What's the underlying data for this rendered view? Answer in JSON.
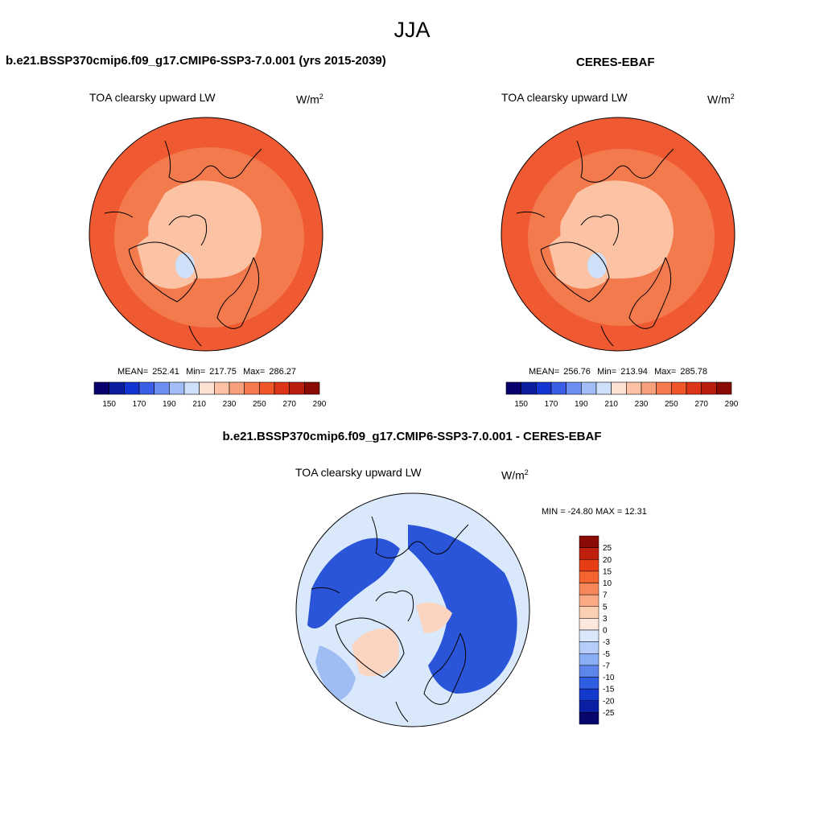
{
  "season": "JJA",
  "panels": [
    {
      "title": "b.e21.BSSP370cmip6.f09_g17.CMIP6-SSP3-7.0.001 (yrs 2015-2039)",
      "variable": "TOA clearsky upward LW",
      "units_base": "W/m",
      "units_exp": "2",
      "mean_label": "MEAN=",
      "mean": "252.41",
      "min_label": "Min=",
      "min": "217.75",
      "max_label": "Max=",
      "max": "286.27"
    },
    {
      "title": "CERES-EBAF",
      "variable": "TOA clearsky upward LW",
      "units_base": "W/m",
      "units_exp": "2",
      "mean_label": "MEAN=",
      "mean": "256.76",
      "min_label": "Min=",
      "min": "213.94",
      "max_label": "Max=",
      "max": "285.78"
    }
  ],
  "diff_panel": {
    "title": "b.e21.BSSP370cmip6.f09_g17.CMIP6-SSP3-7.0.001 - CERES-EBAF",
    "variable": "TOA clearsky upward LW",
    "units_base": "W/m",
    "units_exp": "2",
    "minmax_text": "MIN = -24.80 MAX =  12.31"
  },
  "abs_colorbar": {
    "colors": [
      "#08006e",
      "#0a1d9f",
      "#1535d3",
      "#3a5fe6",
      "#6d8ff2",
      "#a3bdf8",
      "#cfe0fb",
      "#fde2d3",
      "#fbc2a6",
      "#f7a07d",
      "#f57a4f",
      "#f0562a",
      "#dd3518",
      "#b81d0e",
      "#8a0a05"
    ],
    "tick_labels": [
      "150",
      "170",
      "190",
      "210",
      "230",
      "250",
      "270",
      "290"
    ]
  },
  "diff_colorbar": {
    "colors": [
      "#8a0a05",
      "#c0200d",
      "#e63d17",
      "#f5632f",
      "#f7865a",
      "#f9aa85",
      "#fbcfb2",
      "#fde8dc",
      "#d9e8fb",
      "#b5cdf8",
      "#8aaef3",
      "#5d86eb",
      "#2f5ee2",
      "#1238cc",
      "#0a1fa3",
      "#07076e"
    ],
    "tick_labels": [
      "25",
      "20",
      "15",
      "10",
      "7",
      "5",
      "3",
      "0",
      "-3",
      "-5",
      "-7",
      "-10",
      "-15",
      "-20",
      "-25"
    ]
  },
  "map_colors": {
    "outer": "#f05a32",
    "band": "#f27a4d",
    "inner": "#fbc3a4",
    "ice": "#cfe0fb",
    "diff_base": "#d9e8fb",
    "diff_blue": "#2a55d8",
    "diff_pale": "#9fbcf3",
    "diff_warm": "#fbd5c0"
  }
}
